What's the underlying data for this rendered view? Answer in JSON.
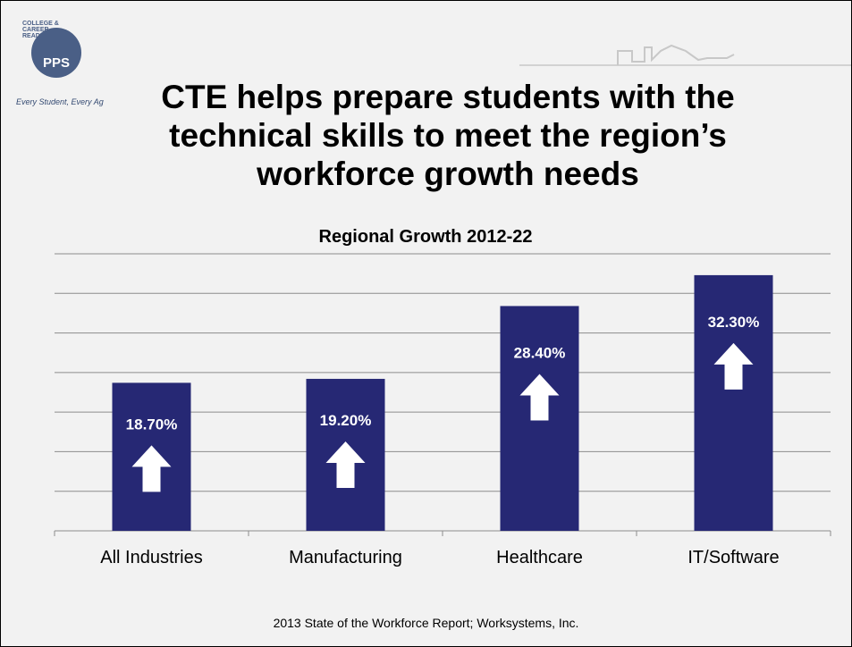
{
  "slide": {
    "title": "CTE helps prepare students with the technical skills to meet the region’s workforce growth needs",
    "source": "2013 State of the Workforce Report; Worksystems, Inc.",
    "logo": {
      "initials": "PPS",
      "ring_text": "COLLEGE & CAREER READINESS",
      "tagline": "Every Student, Every Ag"
    }
  },
  "chart_data": {
    "type": "bar",
    "title": "Regional Growth 2012-22",
    "categories": [
      "All Industries",
      "Manufacturing",
      "Healthcare",
      "IT/Software"
    ],
    "values": [
      18.7,
      19.2,
      28.4,
      32.3
    ],
    "data_labels": [
      "18.70%",
      "19.20%",
      "28.40%",
      "32.30%"
    ],
    "ylim": [
      0,
      35
    ],
    "grid": true,
    "legend": "none",
    "annotation_icon": "up-arrow-icon",
    "colors": {
      "bar": "#262874",
      "grid": "#8c8c8c",
      "label": "#ffffff",
      "arrow": "#ffffff"
    }
  }
}
